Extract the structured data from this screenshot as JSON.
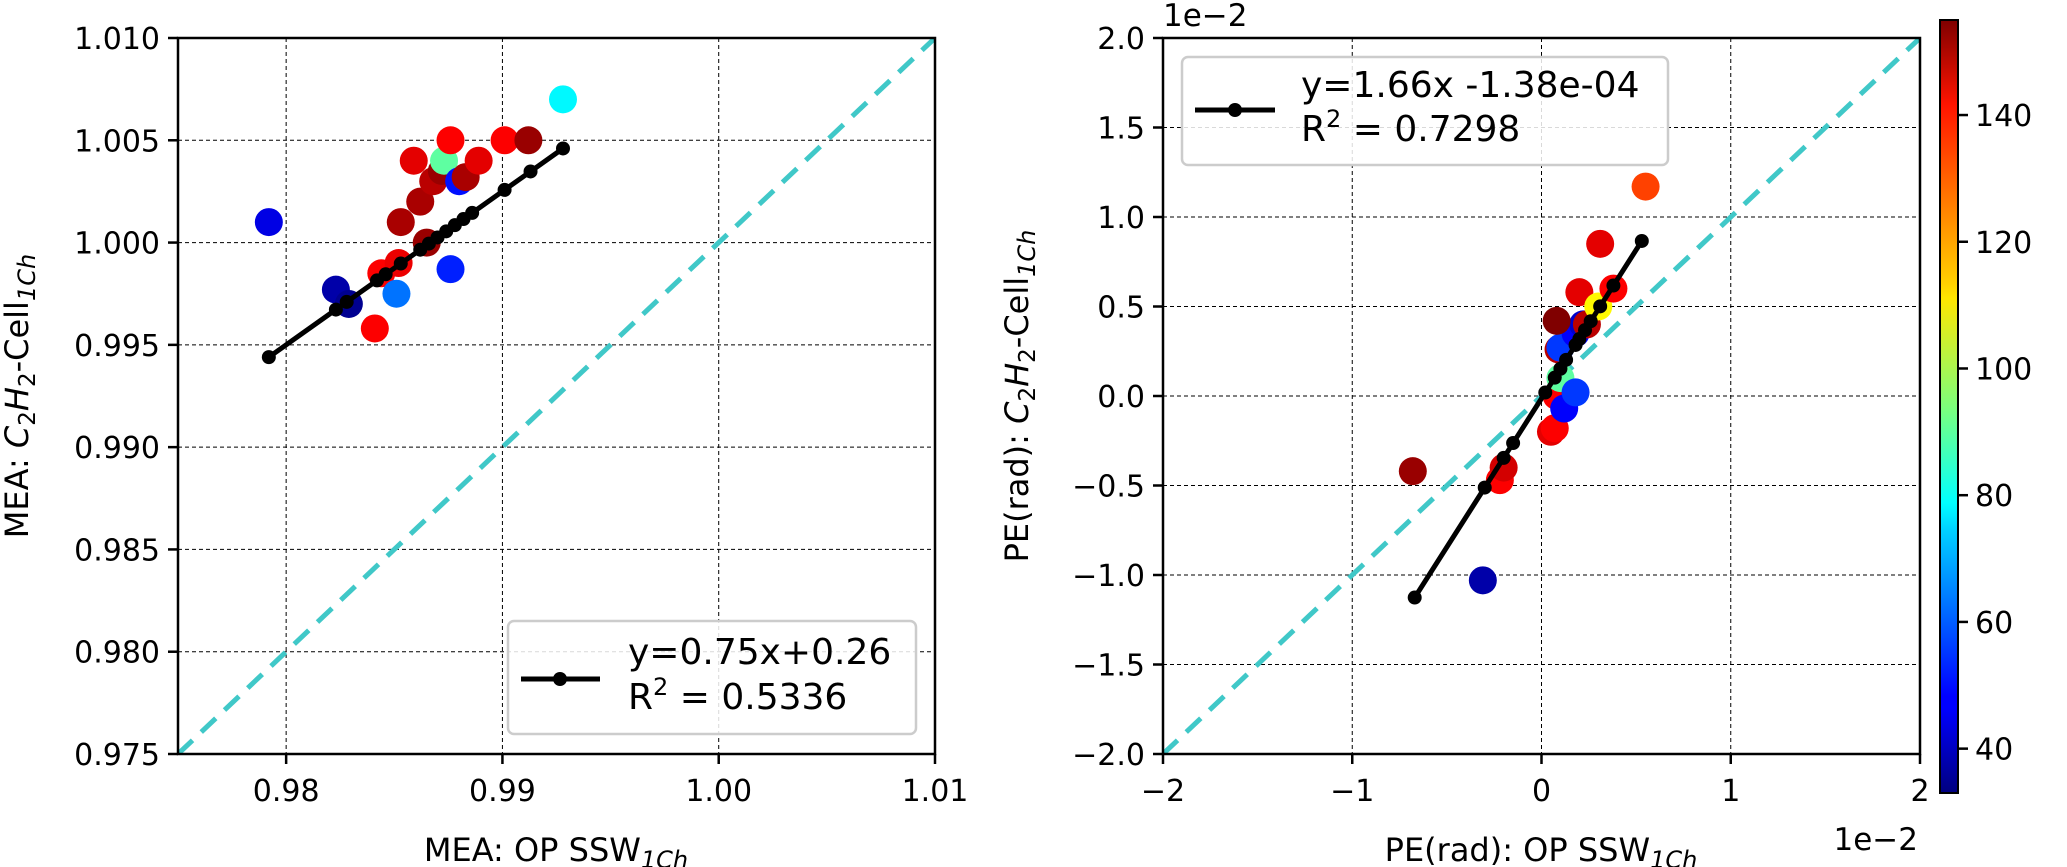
{
  "chart_data": [
    {
      "type": "scatter",
      "xlabel": {
        "pre": "MEA: OP SSW",
        "sub": "1Ch"
      },
      "ylabel": {
        "pre": "MEA: ",
        "sub_formula": [
          "C",
          "2",
          "H",
          "2"
        ],
        "mid": "-Cell",
        "sub": "1Ch"
      },
      "xlim": [
        0.975,
        1.01
      ],
      "ylim": [
        0.975,
        1.01
      ],
      "xticks": [
        0.98,
        0.99,
        1.0,
        1.01
      ],
      "xtick_labels": [
        "0.98",
        "0.99",
        "1.00",
        "1.01"
      ],
      "yticks": [
        0.975,
        0.98,
        0.985,
        0.99,
        0.995,
        1.0,
        1.005,
        1.01
      ],
      "ytick_labels": [
        "0.975",
        "0.980",
        "0.985",
        "0.990",
        "0.995",
        "1.000",
        "1.005",
        "1.010"
      ],
      "grid": true,
      "legend_position": "lower-right",
      "legend": {
        "line1": "y=0.75x+0.26",
        "r2_prefix": "R",
        "r2_sup": "2",
        "r2_value": " = 0.5336"
      },
      "identity_line": {
        "color": "#40c8c8",
        "style": "dashed"
      },
      "fit": {
        "slope": 0.75,
        "intercept": 0.26,
        "marker_x": [
          0.9792,
          0.9823,
          0.9828,
          0.9842,
          0.9846,
          0.9853,
          0.9862,
          0.9866,
          0.987,
          0.9874,
          0.9878,
          0.9882,
          0.9886,
          0.9901,
          0.9913,
          0.9928
        ]
      },
      "points": [
        {
          "x": 0.9792,
          "y": 1.001,
          "c": 45
        },
        {
          "x": 0.9823,
          "y": 0.9977,
          "c": 38
        },
        {
          "x": 0.9829,
          "y": 0.997,
          "c": 35
        },
        {
          "x": 0.9841,
          "y": 0.9958,
          "c": 140
        },
        {
          "x": 0.9844,
          "y": 0.9985,
          "c": 140
        },
        {
          "x": 0.9851,
          "y": 0.9975,
          "c": 62
        },
        {
          "x": 0.9852,
          "y": 0.999,
          "c": 142
        },
        {
          "x": 0.9853,
          "y": 1.001,
          "c": 150
        },
        {
          "x": 0.9859,
          "y": 1.004,
          "c": 143
        },
        {
          "x": 0.9862,
          "y": 1.002,
          "c": 150
        },
        {
          "x": 0.9865,
          "y": 1.0,
          "c": 152
        },
        {
          "x": 0.9868,
          "y": 1.003,
          "c": 148
        },
        {
          "x": 0.9872,
          "y": 1.0035,
          "c": 152
        },
        {
          "x": 0.9873,
          "y": 1.004,
          "c": 90
        },
        {
          "x": 0.9876,
          "y": 0.9987,
          "c": 52
        },
        {
          "x": 0.9876,
          "y": 1.005,
          "c": 140
        },
        {
          "x": 0.988,
          "y": 1.003,
          "c": 50
        },
        {
          "x": 0.9883,
          "y": 1.0032,
          "c": 150
        },
        {
          "x": 0.9889,
          "y": 1.004,
          "c": 143
        },
        {
          "x": 0.9901,
          "y": 1.005,
          "c": 140
        },
        {
          "x": 0.9912,
          "y": 1.005,
          "c": 152
        },
        {
          "x": 0.9928,
          "y": 1.007,
          "c": 78
        }
      ]
    },
    {
      "type": "scatter",
      "xlabel": {
        "pre": "PE(rad): OP SSW",
        "sub": "1Ch"
      },
      "ylabel": {
        "pre": "PE(rad): ",
        "sub_formula": [
          "C",
          "2",
          "H",
          "2"
        ],
        "mid": "-Cell",
        "sub": "1Ch"
      },
      "xlim": [
        -2.0,
        2.0
      ],
      "ylim": [
        -2.0,
        2.0
      ],
      "axis_scale_text": "1e−2",
      "xticks": [
        -2,
        -1,
        0,
        1,
        2
      ],
      "xtick_labels": [
        "−2",
        "−1",
        "0",
        "1",
        "2"
      ],
      "yticks": [
        -2.0,
        -1.5,
        -1.0,
        -0.5,
        0.0,
        0.5,
        1.0,
        1.5,
        2.0
      ],
      "ytick_labels": [
        "−2.0",
        "−1.5",
        "−1.0",
        "−0.5",
        "0.0",
        "0.5",
        "1.0",
        "1.5",
        "2.0"
      ],
      "grid": true,
      "legend_position": "upper-left",
      "legend": {
        "line1": "y=1.66x -1.38e-04",
        "r2_prefix": "R",
        "r2_sup": "2",
        "r2_value": " = 0.7298"
      },
      "identity_line": {
        "color": "#40c8c8",
        "style": "dashed"
      },
      "fit": {
        "slope": 1.66,
        "intercept": -0.0138,
        "marker_x": [
          -0.67,
          -0.3,
          -0.2,
          -0.15,
          0.02,
          0.07,
          0.1,
          0.13,
          0.18,
          0.2,
          0.23,
          0.26,
          0.31,
          0.38,
          0.53
        ]
      },
      "points": [
        {
          "x": -0.68,
          "y": -0.42,
          "c": 152
        },
        {
          "x": -0.31,
          "y": -1.03,
          "c": 38
        },
        {
          "x": -0.22,
          "y": -0.47,
          "c": 140
        },
        {
          "x": -0.2,
          "y": -0.4,
          "c": 145
        },
        {
          "x": 0.05,
          "y": -0.2,
          "c": 143
        },
        {
          "x": 0.07,
          "y": -0.18,
          "c": 140
        },
        {
          "x": 0.08,
          "y": 0.0,
          "c": 140
        },
        {
          "x": 0.1,
          "y": 0.1,
          "c": 90
        },
        {
          "x": 0.09,
          "y": 0.26,
          "c": 148
        },
        {
          "x": 0.1,
          "y": 0.27,
          "c": 55
        },
        {
          "x": 0.12,
          "y": -0.07,
          "c": 48
        },
        {
          "x": 0.18,
          "y": 0.02,
          "c": 55
        },
        {
          "x": 0.18,
          "y": 0.35,
          "c": 48
        },
        {
          "x": 0.2,
          "y": 0.58,
          "c": 143
        },
        {
          "x": 0.22,
          "y": 0.4,
          "c": 42
        },
        {
          "x": 0.24,
          "y": 0.4,
          "c": 148
        },
        {
          "x": 0.08,
          "y": 0.42,
          "c": 155
        },
        {
          "x": 0.3,
          "y": 0.5,
          "c": 110
        },
        {
          "x": 0.31,
          "y": 0.85,
          "c": 143
        },
        {
          "x": 0.38,
          "y": 0.6,
          "c": 140
        },
        {
          "x": 0.55,
          "y": 1.17,
          "c": 132
        }
      ]
    }
  ],
  "colorbar": {
    "range": [
      33,
      155
    ],
    "ticks": [
      40,
      60,
      80,
      100,
      120,
      140
    ],
    "tick_labels": [
      "40",
      "60",
      "80",
      "100",
      "120",
      "140"
    ],
    "colormap": "jet"
  }
}
